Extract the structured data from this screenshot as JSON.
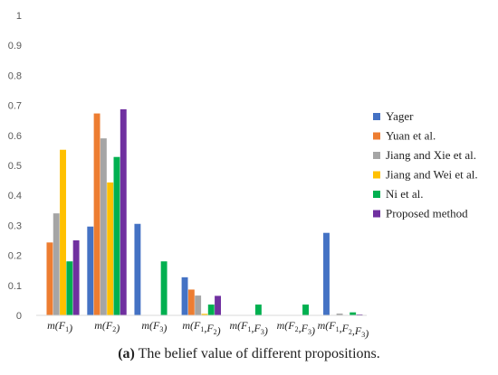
{
  "chart_data": {
    "type": "bar",
    "categories": [
      {
        "label": "m(F₁)",
        "parts": [
          [
            "m(F",
            ""
          ],
          [
            "1",
            "sub"
          ],
          [
            ")",
            ""
          ]
        ]
      },
      {
        "label": "m(F₂)",
        "parts": [
          [
            "m(F",
            ""
          ],
          [
            "2",
            "sub"
          ],
          [
            ")",
            ""
          ]
        ]
      },
      {
        "label": "m(F₃)",
        "parts": [
          [
            "m(F",
            ""
          ],
          [
            "3",
            "sub"
          ],
          [
            ")",
            ""
          ]
        ]
      },
      {
        "label": "m(F₁,F₂)",
        "parts": [
          [
            "m(F",
            ""
          ],
          [
            "1",
            "sub"
          ],
          [
            ",F",
            ""
          ],
          [
            "2",
            "sub"
          ],
          [
            ")",
            ""
          ]
        ]
      },
      {
        "label": "m(F₁,F₃)",
        "parts": [
          [
            "m(F",
            ""
          ],
          [
            "1",
            "sub"
          ],
          [
            ",F",
            ""
          ],
          [
            "3",
            "sub"
          ],
          [
            ")",
            ""
          ]
        ]
      },
      {
        "label": "m(F₂,F₃)",
        "parts": [
          [
            "m(F",
            ""
          ],
          [
            "2",
            "sub"
          ],
          [
            ",F",
            ""
          ],
          [
            "3",
            "sub"
          ],
          [
            ")",
            ""
          ]
        ]
      },
      {
        "label": "m(F₁,F₂,F₃)",
        "parts": [
          [
            "m(F",
            ""
          ],
          [
            "1",
            "sub"
          ],
          [
            ",F",
            ""
          ],
          [
            "2",
            "sub"
          ],
          [
            ",F",
            ""
          ],
          [
            "3",
            "sub"
          ],
          [
            ")",
            ""
          ]
        ]
      }
    ],
    "series": [
      {
        "name": "Yager",
        "color": "#4472C4",
        "values": [
          0,
          0.296,
          0.305,
          0.127,
          0,
          0,
          0.275
        ]
      },
      {
        "name": "Yuan et al.",
        "color": "#ED7D31",
        "values": [
          0.243,
          0.673,
          0,
          0.086,
          0,
          0,
          0
        ]
      },
      {
        "name": "Jiang and Xie et al.",
        "color": "#A5A5A5",
        "values": [
          0.34,
          0.59,
          0,
          0.066,
          0,
          0,
          0.006
        ]
      },
      {
        "name": "Jiang and Wei et al.",
        "color": "#FFC000",
        "values": [
          0.552,
          0.443,
          0,
          0.005,
          0,
          0,
          0
        ]
      },
      {
        "name": "Ni et al.",
        "color": "#00B050",
        "values": [
          0.18,
          0.528,
          0.18,
          0.036,
          0.036,
          0.036,
          0.01
        ]
      },
      {
        "name": "Proposed method",
        "color": "#7030A0",
        "values": [
          0.25,
          0.687,
          0,
          0.065,
          0,
          0,
          0.003
        ]
      }
    ],
    "ylim": [
      0,
      1
    ],
    "yticks": [
      0,
      0.1,
      0.2,
      0.3,
      0.4,
      0.5,
      0.6,
      0.7,
      0.8,
      0.9,
      1
    ],
    "grid": false,
    "legend": "right"
  },
  "caption": {
    "label": "(a)",
    "text": " The belief value of different propositions."
  }
}
